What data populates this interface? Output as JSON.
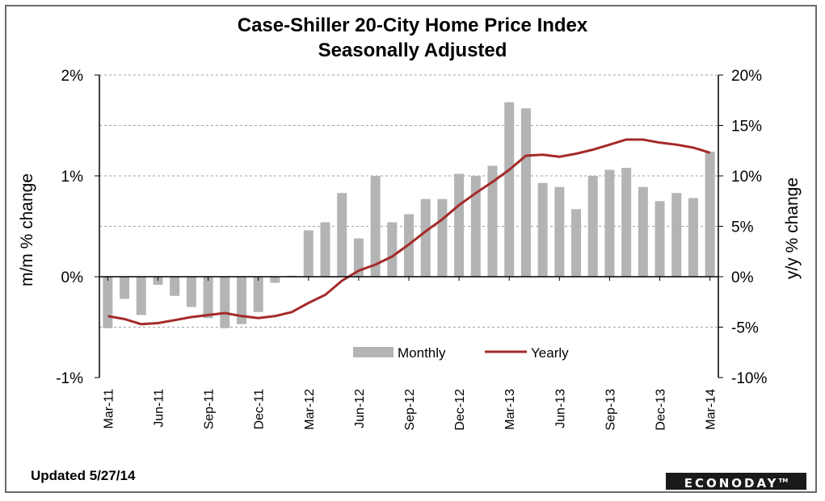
{
  "chart_data": {
    "type": "bar+line",
    "title": "Case-Shiller 20-City  Home Price Index",
    "subtitle": "Seasonally Adjusted",
    "ylabel_left": "m/m % change",
    "ylabel_right": "y/y % change",
    "y_left": {
      "min": -1,
      "max": 2,
      "ticks": [
        "-1%",
        "0%",
        "1%",
        "2%"
      ]
    },
    "y_right": {
      "min": -10,
      "max": 20,
      "ticks": [
        "-10%",
        "-5%",
        "0%",
        "5%",
        "10%",
        "15%",
        "20%"
      ]
    },
    "grid": true,
    "legend": "bottom-center",
    "x_tick_labels": [
      "Mar-11",
      "Jun-11",
      "Sep-11",
      "Dec-11",
      "Mar-12",
      "Jun-12",
      "Sep-12",
      "Dec-12",
      "Mar-13",
      "Jun-13",
      "Sep-13",
      "Dec-13",
      "Mar-14"
    ],
    "categories": [
      "Mar-11",
      "Apr-11",
      "May-11",
      "Jun-11",
      "Jul-11",
      "Aug-11",
      "Sep-11",
      "Oct-11",
      "Nov-11",
      "Dec-11",
      "Jan-12",
      "Feb-12",
      "Mar-12",
      "Apr-12",
      "May-12",
      "Jun-12",
      "Jul-12",
      "Aug-12",
      "Sep-12",
      "Oct-12",
      "Nov-12",
      "Dec-12",
      "Jan-13",
      "Feb-13",
      "Mar-13",
      "Apr-13",
      "May-13",
      "Jun-13",
      "Jul-13",
      "Aug-13",
      "Sep-13",
      "Oct-13",
      "Nov-13",
      "Dec-13",
      "Jan-14",
      "Feb-14",
      "Mar-14"
    ],
    "series": [
      {
        "name": "Monthly",
        "type": "bar",
        "axis": "left",
        "color": "#b4b4b4",
        "values": [
          -0.51,
          -0.22,
          -0.38,
          -0.08,
          -0.19,
          -0.3,
          -0.41,
          -0.51,
          -0.47,
          -0.35,
          -0.06,
          0.01,
          0.46,
          0.54,
          0.83,
          0.38,
          1.0,
          0.54,
          0.62,
          0.77,
          0.77,
          1.02,
          1.0,
          1.1,
          1.73,
          1.67,
          0.93,
          0.89,
          0.67,
          1.0,
          1.06,
          1.08,
          0.89,
          0.75,
          0.83,
          0.78,
          1.24
        ]
      },
      {
        "name": "Yearly",
        "type": "line",
        "axis": "right",
        "color": "#a52a2a",
        "values": [
          -3.9,
          -4.2,
          -4.7,
          -4.6,
          -4.3,
          -4.0,
          -3.8,
          -3.6,
          -3.9,
          -4.1,
          -3.9,
          -3.5,
          -2.6,
          -1.8,
          -0.4,
          0.6,
          1.2,
          2.0,
          3.2,
          4.5,
          5.7,
          7.1,
          8.3,
          9.4,
          10.6,
          12.0,
          12.1,
          11.9,
          12.2,
          12.6,
          13.1,
          13.6,
          13.6,
          13.3,
          13.1,
          12.8,
          12.3
        ]
      }
    ]
  },
  "footer": {
    "updated": "Updated 5/27/14",
    "brand": "ECONODAY",
    "brand_mark": "TM"
  }
}
